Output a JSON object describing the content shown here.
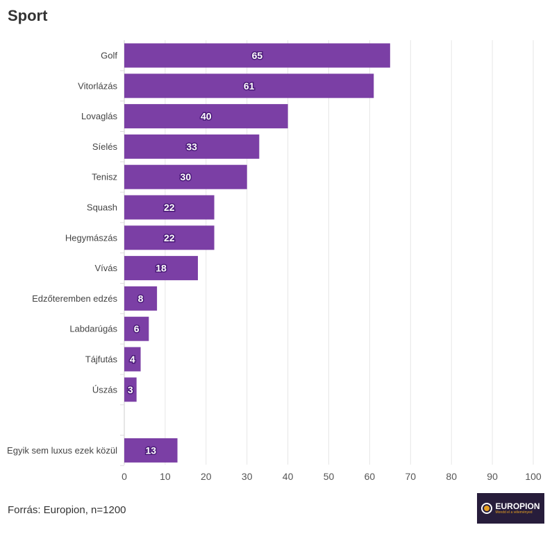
{
  "chart_data": {
    "type": "bar",
    "title": "Sport",
    "orientation": "horizontal",
    "categories": [
      "Golf",
      "Vitorlázás",
      "Lovaglás",
      "Síelés",
      "Tenisz",
      "Squash",
      "Hegymászás",
      "Vívás",
      "Edzőteremben edzés",
      "Labdarúgás",
      "Tájfutás",
      "Úszás",
      "",
      "Egyik sem luxus ezek közül"
    ],
    "values": [
      65,
      61,
      40,
      33,
      30,
      22,
      22,
      18,
      8,
      6,
      4,
      3,
      null,
      13
    ],
    "xlim": [
      0,
      100
    ],
    "xticks": [
      0,
      10,
      20,
      30,
      40,
      50,
      60,
      70,
      80,
      90,
      100
    ],
    "grid": true,
    "bar_color": "#7b3fa5"
  },
  "source": "Forrás: Europion, n=1200",
  "logo": {
    "name": "EUROPION",
    "tagline": "Mondd el a véleményed"
  }
}
